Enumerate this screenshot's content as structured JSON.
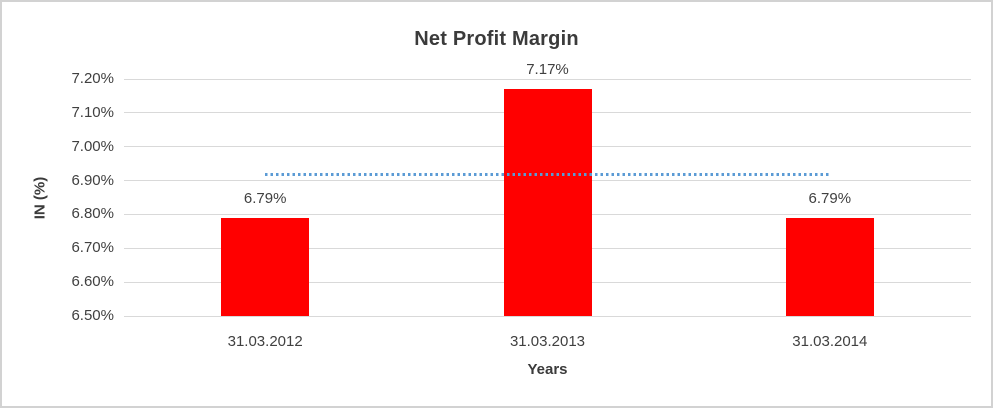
{
  "chart_data": {
    "type": "bar",
    "title": "Net Profit Margin",
    "xlabel": "Years",
    "ylabel": "IN (%)",
    "categories": [
      "31.03.2012",
      "31.03.2013",
      "31.03.2014"
    ],
    "values": [
      6.79,
      7.17,
      6.79
    ],
    "data_labels": [
      "6.79%",
      "7.17%",
      "6.79%"
    ],
    "ylim": [
      6.5,
      7.2
    ],
    "yticks": [
      {
        "value": 6.5,
        "label": "6.50%"
      },
      {
        "value": 6.6,
        "label": "6.60%"
      },
      {
        "value": 6.7,
        "label": "6.70%"
      },
      {
        "value": 6.8,
        "label": "6.80%"
      },
      {
        "value": 6.9,
        "label": "6.90%"
      },
      {
        "value": 7.0,
        "label": "7.00%"
      },
      {
        "value": 7.1,
        "label": "7.10%"
      },
      {
        "value": 7.2,
        "label": "7.20%"
      }
    ],
    "grid": true,
    "legend": "none",
    "trend_line": {
      "style": "dotted",
      "value": 6.9167,
      "spans": "first-category-center-to-last-category-center"
    }
  },
  "colors": {
    "bar": "#ff0000",
    "trend_line": "#5b9bd5",
    "gridline": "#d9d9d9",
    "text": "#404040",
    "title_text": "#3b3b3b",
    "border": "#d2d2d2",
    "background": "#ffffff"
  }
}
